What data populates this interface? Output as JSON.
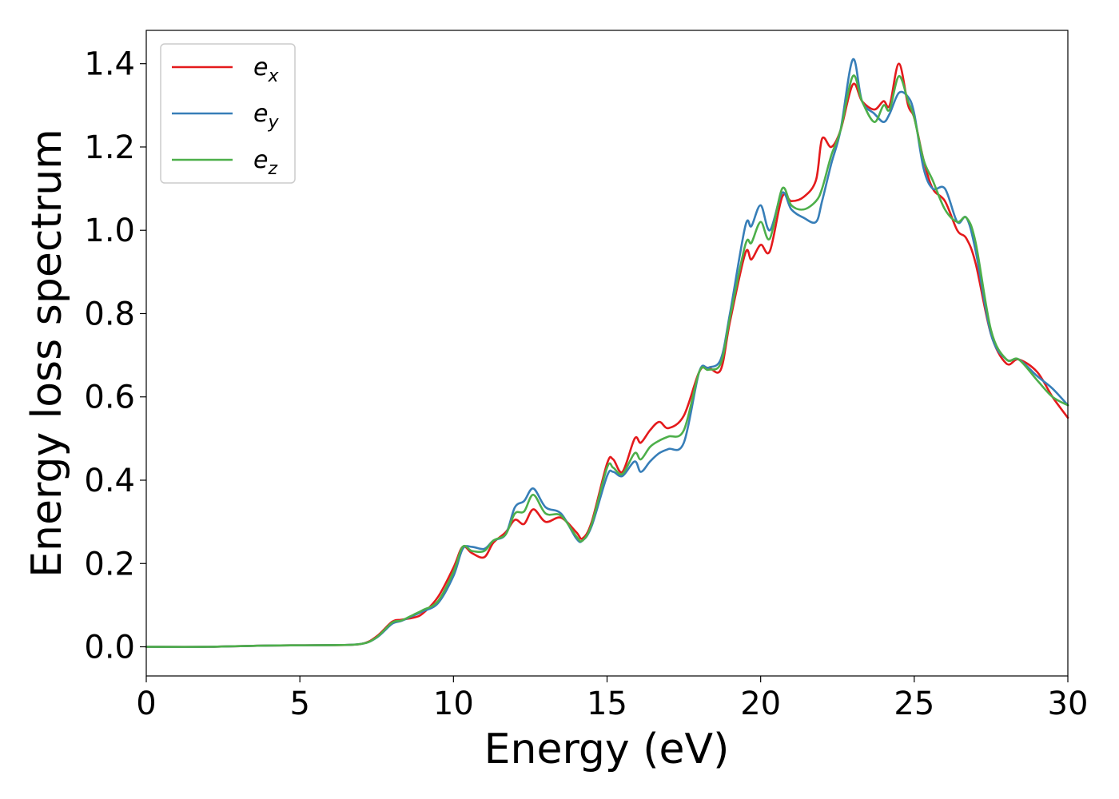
{
  "chart_data": {
    "type": "line",
    "title": "",
    "xlabel": "Energy (eV)",
    "ylabel": "Energy loss spectrum",
    "xlim": [
      0,
      30
    ],
    "ylim": [
      -0.07,
      1.48
    ],
    "xticks": [
      0,
      5,
      10,
      15,
      20,
      25,
      30
    ],
    "xtick_labels": [
      "0",
      "5",
      "10",
      "15",
      "20",
      "25",
      "30"
    ],
    "yticks": [
      0.0,
      0.2,
      0.4,
      0.6,
      0.8,
      1.0,
      1.2,
      1.4
    ],
    "ytick_labels": [
      "0.0",
      "0.2",
      "0.4",
      "0.6",
      "0.8",
      "1.0",
      "1.2",
      "1.4"
    ],
    "grid": false,
    "legend_position": "top-left",
    "series": [
      {
        "name": "e",
        "subscript": "x",
        "color": "#e41a1c",
        "x": [
          0,
          2,
          4,
          6,
          7,
          7.5,
          8,
          8.3,
          8.7,
          9,
          9.5,
          10,
          10.3,
          10.6,
          11,
          11.3,
          11.7,
          12,
          12.3,
          12.6,
          13,
          13.5,
          14,
          14.2,
          14.5,
          15,
          15.2,
          15.5,
          15.9,
          16.1,
          16.4,
          16.7,
          17,
          17.5,
          18,
          18.3,
          18.7,
          19,
          19.5,
          19.7,
          20,
          20.3,
          20.7,
          21,
          21.4,
          21.8,
          22,
          22.3,
          22.6,
          23,
          23.3,
          23.7,
          24,
          24.2,
          24.5,
          24.8,
          25,
          25.3,
          25.6,
          26,
          26.4,
          26.7,
          27,
          27.5,
          28,
          28.4,
          29,
          29.5,
          30
        ],
        "y": [
          0.0,
          0.0,
          0.003,
          0.004,
          0.007,
          0.025,
          0.06,
          0.065,
          0.07,
          0.08,
          0.12,
          0.19,
          0.24,
          0.225,
          0.215,
          0.25,
          0.275,
          0.305,
          0.295,
          0.33,
          0.3,
          0.31,
          0.275,
          0.26,
          0.3,
          0.44,
          0.45,
          0.42,
          0.5,
          0.49,
          0.52,
          0.54,
          0.525,
          0.555,
          0.66,
          0.67,
          0.665,
          0.78,
          0.945,
          0.93,
          0.965,
          0.95,
          1.08,
          1.07,
          1.08,
          1.12,
          1.22,
          1.2,
          1.24,
          1.35,
          1.31,
          1.29,
          1.31,
          1.3,
          1.4,
          1.3,
          1.27,
          1.17,
          1.1,
          1.07,
          1.0,
          0.98,
          0.92,
          0.75,
          0.68,
          0.69,
          0.66,
          0.6,
          0.55
        ]
      },
      {
        "name": "e",
        "subscript": "y",
        "color": "#377eb8",
        "x": [
          0,
          2,
          4,
          6,
          7,
          7.5,
          8,
          8.3,
          8.7,
          9,
          9.5,
          10,
          10.3,
          10.6,
          11,
          11.3,
          11.7,
          12,
          12.3,
          12.6,
          13,
          13.5,
          14,
          14.2,
          14.5,
          15,
          15.2,
          15.5,
          15.9,
          16.1,
          16.4,
          16.7,
          17,
          17.5,
          18,
          18.3,
          18.7,
          19,
          19.5,
          19.7,
          20,
          20.3,
          20.7,
          21,
          21.4,
          21.8,
          22,
          22.3,
          22.6,
          23,
          23.3,
          23.7,
          24,
          24.2,
          24.5,
          24.8,
          25,
          25.3,
          25.6,
          26,
          26.4,
          26.7,
          27,
          27.5,
          28,
          28.4,
          29,
          29.5,
          30
        ],
        "y": [
          0.0,
          0.0,
          0.003,
          0.004,
          0.007,
          0.022,
          0.055,
          0.062,
          0.075,
          0.085,
          0.105,
          0.17,
          0.235,
          0.24,
          0.235,
          0.255,
          0.27,
          0.335,
          0.35,
          0.38,
          0.335,
          0.32,
          0.26,
          0.255,
          0.29,
          0.41,
          0.42,
          0.41,
          0.445,
          0.42,
          0.445,
          0.465,
          0.475,
          0.49,
          0.66,
          0.67,
          0.69,
          0.8,
          1.01,
          1.01,
          1.06,
          1.0,
          1.09,
          1.05,
          1.03,
          1.02,
          1.07,
          1.16,
          1.24,
          1.41,
          1.31,
          1.28,
          1.26,
          1.28,
          1.33,
          1.32,
          1.28,
          1.15,
          1.1,
          1.1,
          1.02,
          1.03,
          0.95,
          0.75,
          0.69,
          0.69,
          0.65,
          0.62,
          0.58
        ]
      },
      {
        "name": "e",
        "subscript": "z",
        "color": "#4daf4a",
        "x": [
          0,
          2,
          4,
          6,
          7,
          7.5,
          8,
          8.3,
          8.7,
          9,
          9.5,
          10,
          10.3,
          10.6,
          11,
          11.3,
          11.7,
          12,
          12.3,
          12.6,
          13,
          13.5,
          14,
          14.2,
          14.5,
          15,
          15.2,
          15.5,
          15.9,
          16.1,
          16.4,
          16.7,
          17,
          17.5,
          18,
          18.3,
          18.7,
          19,
          19.5,
          19.7,
          20,
          20.3,
          20.7,
          21,
          21.4,
          21.8,
          22,
          22.3,
          22.6,
          23,
          23.3,
          23.7,
          24,
          24.2,
          24.5,
          24.8,
          25,
          25.3,
          25.6,
          26,
          26.4,
          26.7,
          27,
          27.5,
          28,
          28.4,
          29,
          29.5,
          30
        ],
        "y": [
          0.0,
          0.0,
          0.003,
          0.004,
          0.007,
          0.023,
          0.058,
          0.063,
          0.077,
          0.088,
          0.11,
          0.18,
          0.24,
          0.23,
          0.23,
          0.255,
          0.27,
          0.32,
          0.325,
          0.365,
          0.32,
          0.315,
          0.265,
          0.255,
          0.295,
          0.43,
          0.43,
          0.415,
          0.465,
          0.45,
          0.48,
          0.495,
          0.505,
          0.52,
          0.66,
          0.665,
          0.68,
          0.79,
          0.965,
          0.97,
          1.02,
          0.98,
          1.1,
          1.06,
          1.05,
          1.07,
          1.1,
          1.18,
          1.24,
          1.37,
          1.31,
          1.26,
          1.3,
          1.29,
          1.37,
          1.31,
          1.27,
          1.17,
          1.12,
          1.05,
          1.02,
          1.03,
          0.97,
          0.76,
          0.69,
          0.69,
          0.64,
          0.6,
          0.58
        ]
      }
    ]
  }
}
